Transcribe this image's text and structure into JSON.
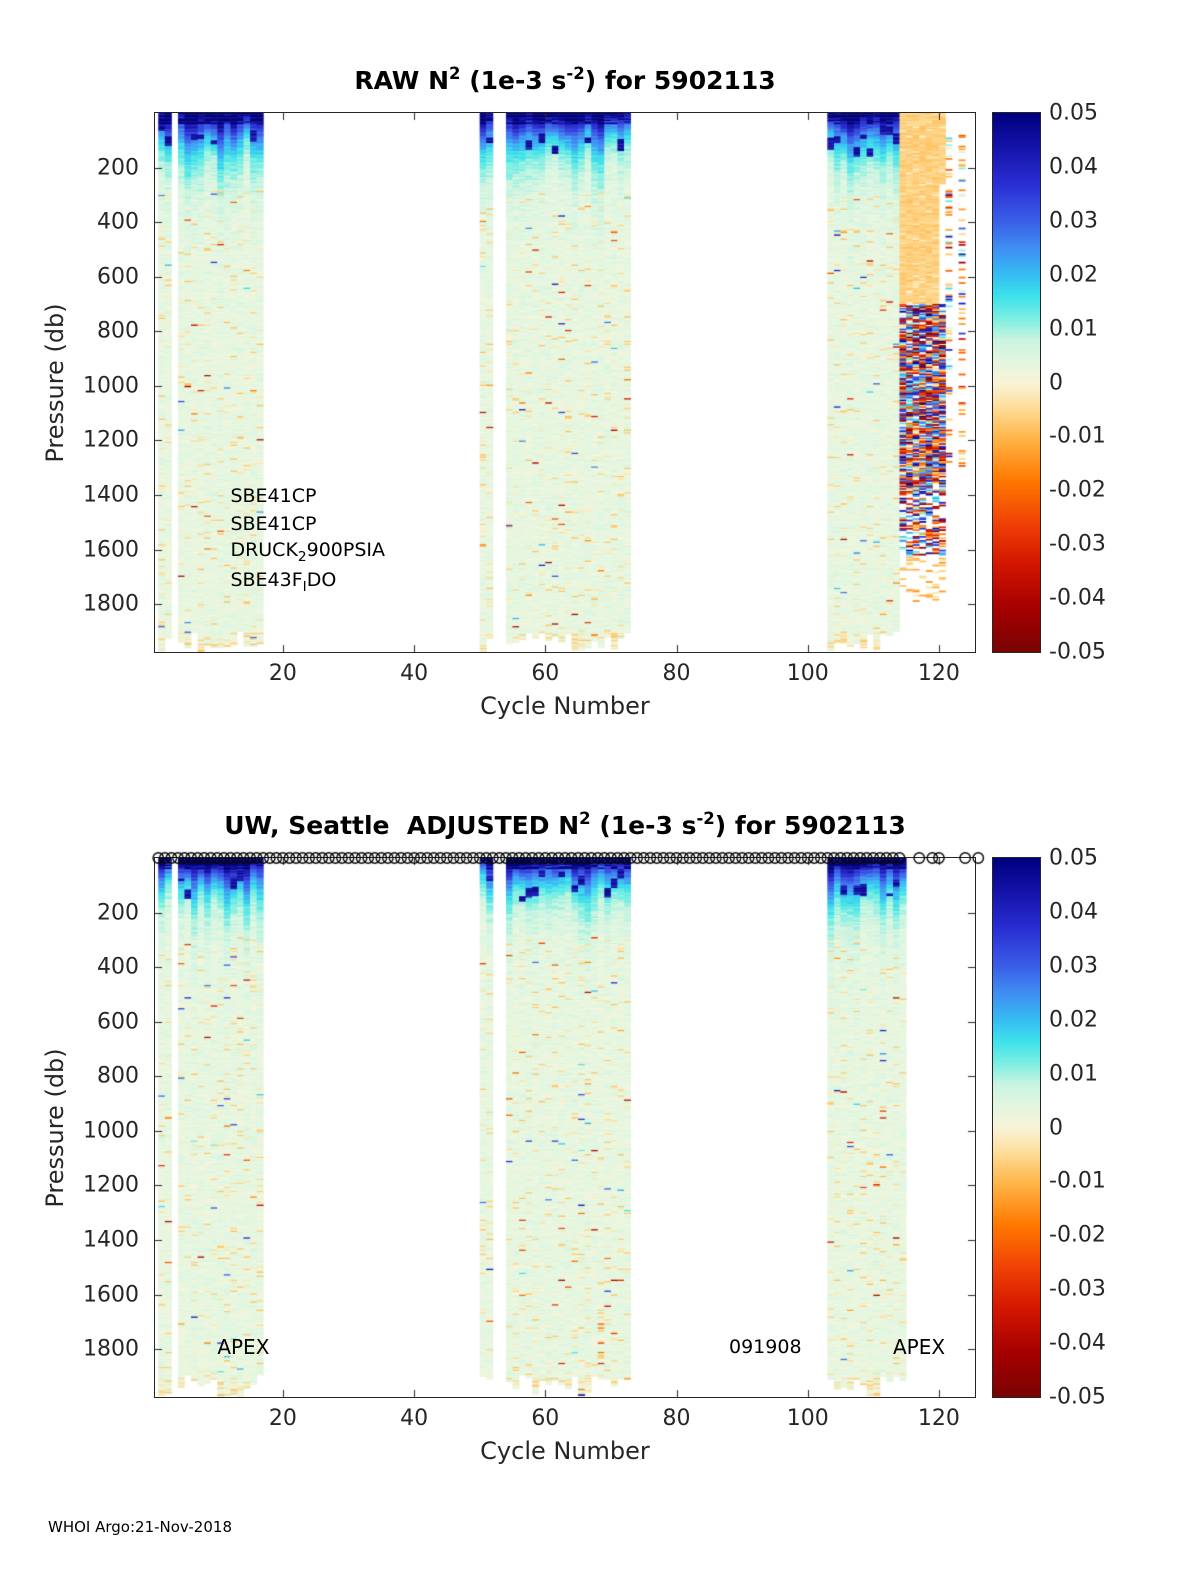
{
  "page": {
    "footer": "WHOI Argo:21-Nov-2018",
    "background": "#ffffff"
  },
  "colorbar_tick_labels": [
    "0.05",
    "0.04",
    "0.03",
    "0.02",
    "0.01",
    "0",
    "-0.01",
    "-0.02",
    "-0.03",
    "-0.04",
    "-0.05"
  ],
  "colormap_stops": [
    [
      0.0,
      "#7a0403"
    ],
    [
      0.08,
      "#a50000"
    ],
    [
      0.16,
      "#d21500"
    ],
    [
      0.24,
      "#f04205"
    ],
    [
      0.32,
      "#ff7a00"
    ],
    [
      0.4,
      "#ffb84d"
    ],
    [
      0.46,
      "#fde2a3"
    ],
    [
      0.5,
      "#f8f4d8"
    ],
    [
      0.54,
      "#e4f6e0"
    ],
    [
      0.58,
      "#c9f4e0"
    ],
    [
      0.62,
      "#7beee2"
    ],
    [
      0.66,
      "#3ee2ea"
    ],
    [
      0.7,
      "#35bdf2"
    ],
    [
      0.75,
      "#3f8ef2"
    ],
    [
      0.8,
      "#3a5fe8"
    ],
    [
      0.87,
      "#2a2ed2"
    ],
    [
      0.94,
      "#1412a8"
    ],
    [
      1.0,
      "#00007f"
    ]
  ],
  "panels": [
    {
      "title_parts": {
        "p1": "RAW N",
        "sup1": "2",
        "p2": " (1e-3 s",
        "sup2": "-2",
        "p3": ") for 5902113"
      },
      "xlabel": "Cycle Number",
      "ylabel": "Pressure (db)"
    },
    {
      "title_parts": {
        "p1": "UW, Seattle  ADJUSTED N",
        "sup1": "2",
        "p2": " (1e-3 s",
        "sup2": "-2",
        "p3": ") for 5902113"
      },
      "xlabel": "Cycle Number",
      "ylabel": "Pressure (db)"
    }
  ],
  "chart_data": [
    {
      "type": "heatmap",
      "title": "RAW N^2 (1e-3 s^-2) for 5902113",
      "xlabel": "Cycle Number",
      "ylabel": "Pressure (db)",
      "xlim": [
        0.5,
        125.5
      ],
      "ylim": [
        0,
        1975
      ],
      "y_axis_inverted": true,
      "xticks": [
        20,
        40,
        60,
        80,
        100,
        120
      ],
      "yticks": [
        200,
        400,
        600,
        800,
        1000,
        1200,
        1400,
        1600,
        1800
      ],
      "value_units": "1e-3 s^-2",
      "grid": false,
      "colorbar": {
        "min": -0.05,
        "max": 0.05,
        "ticks": [
          0.05,
          0.04,
          0.03,
          0.02,
          0.01,
          0,
          -0.01,
          -0.02,
          -0.03,
          -0.04,
          -0.05
        ],
        "position": "right"
      },
      "seed": 7,
      "cycle_segments": [
        {
          "from": 1,
          "to": 2,
          "kind": "normal"
        },
        {
          "from": 4,
          "to": 16,
          "kind": "normal"
        },
        {
          "from": 50,
          "to": 51,
          "kind": "normal"
        },
        {
          "from": 54,
          "to": 72,
          "kind": "normal"
        },
        {
          "from": 103,
          "to": 113,
          "kind": "normal"
        },
        {
          "from": 114,
          "to": 121,
          "kind": "bad_noisy"
        },
        {
          "from": 123,
          "to": 123,
          "kind": "sparse_noise"
        }
      ],
      "field_summary": {
        "surface_layer": {
          "pressure_db": [
            0,
            200
          ],
          "n2_x1e3_range": [
            0.01,
            0.05
          ],
          "appearance": "navy/blue/cyan strong stratification"
        },
        "interior": {
          "pressure_db": [
            200,
            1950
          ],
          "n2_x1e3_typical": 0.004,
          "appearance": "pale green near zero with sparse orange flecks to -0.01"
        },
        "bad_segment": {
          "cycles": [
            114,
            121
          ],
          "appearance": "uniform orange ~-0.006 above 700 db, saturated random stripes +/-0.05 between 700 and 1600 db"
        }
      },
      "annotations": [
        {
          "cycle": 12,
          "pressure": 1405,
          "parts": [
            {
              "t": "SBE41CP"
            }
          ]
        },
        {
          "cycle": 12,
          "pressure": 1505,
          "parts": [
            {
              "t": "SBE41CP"
            }
          ]
        },
        {
          "cycle": 12,
          "pressure": 1603,
          "parts": [
            {
              "t": "DRUCK"
            },
            {
              "t": "2",
              "sub": true
            },
            {
              "t": "900PSIA"
            }
          ]
        },
        {
          "cycle": 12,
          "pressure": 1712,
          "parts": [
            {
              "t": "SBE43F"
            },
            {
              "t": "I",
              "sub": true
            },
            {
              "t": "DO"
            }
          ]
        }
      ]
    },
    {
      "type": "heatmap",
      "title": "UW, Seattle ADJUSTED N^2 (1e-3 s^-2) for 5902113",
      "xlabel": "Cycle Number",
      "ylabel": "Pressure (db)",
      "xlim": [
        0.5,
        125.5
      ],
      "ylim": [
        0,
        1975
      ],
      "y_axis_inverted": true,
      "xticks": [
        20,
        40,
        60,
        80,
        100,
        120
      ],
      "yticks": [
        200,
        400,
        600,
        800,
        1000,
        1200,
        1400,
        1600,
        1800
      ],
      "value_units": "1e-3 s^-2",
      "grid": false,
      "colorbar": {
        "min": -0.05,
        "max": 0.05,
        "ticks": [
          0.05,
          0.04,
          0.03,
          0.02,
          0.01,
          0,
          -0.01,
          -0.02,
          -0.03,
          -0.04,
          -0.05
        ],
        "position": "right"
      },
      "seed": 13,
      "cycle_segments": [
        {
          "from": 1,
          "to": 2,
          "kind": "normal"
        },
        {
          "from": 4,
          "to": 16,
          "kind": "normal"
        },
        {
          "from": 50,
          "to": 51,
          "kind": "normal"
        },
        {
          "from": 54,
          "to": 72,
          "kind": "normal"
        },
        {
          "from": 103,
          "to": 114,
          "kind": "normal"
        }
      ],
      "field_summary": {
        "surface_layer": {
          "pressure_db": [
            0,
            200
          ],
          "n2_x1e3_range": [
            0.01,
            0.05
          ],
          "appearance": "navy/blue/cyan strong stratification"
        },
        "interior": {
          "pressure_db": [
            200,
            1950
          ],
          "n2_x1e3_typical": 0.004,
          "appearance": "pale green near zero with sparse orange flecks to -0.01"
        }
      },
      "top_markers": {
        "symbol": "open-circle",
        "continuous_cycles": [
          1,
          114
        ],
        "extra_cycles": [
          117,
          119,
          120,
          124,
          126
        ]
      },
      "annotations": [
        {
          "cycle": 10,
          "pressure": 1790,
          "size": 20,
          "parts": [
            {
              "t": "APEX"
            }
          ]
        },
        {
          "cycle": 88,
          "pressure": 1790,
          "size": 19,
          "parts": [
            {
              "t": "091908"
            }
          ]
        },
        {
          "cycle": 113,
          "pressure": 1790,
          "size": 20,
          "parts": [
            {
              "t": "APEX"
            }
          ]
        }
      ]
    }
  ]
}
